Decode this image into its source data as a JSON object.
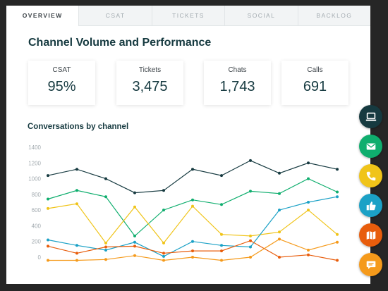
{
  "tabs": [
    {
      "label": "OVERVIEW",
      "active": true
    },
    {
      "label": "CSAT",
      "active": false
    },
    {
      "label": "TICKETS",
      "active": false
    },
    {
      "label": "SOCIAL",
      "active": false
    },
    {
      "label": "BACKLOG",
      "active": false
    }
  ],
  "page_title": "Channel Volume and Performance",
  "kpis": [
    {
      "label": "CSAT",
      "value": "95%"
    },
    {
      "label": "Tickets",
      "value": "3,475"
    },
    {
      "label": "Chats",
      "value": "1,743"
    },
    {
      "label": "Calls",
      "value": "691"
    }
  ],
  "chart_title": "Conversations by channel",
  "chart_data": {
    "type": "line",
    "title": "Conversations by channel",
    "xlabel": "",
    "ylabel": "",
    "ylim": [
      0,
      1400
    ],
    "yticks": [
      0,
      200,
      400,
      600,
      800,
      1000,
      1200,
      1400
    ],
    "x": [
      1,
      2,
      3,
      4,
      5,
      6,
      7,
      8,
      9,
      10,
      11
    ],
    "grid": false,
    "series": [
      {
        "color": "#163a40",
        "values": [
          1040,
          1120,
          1000,
          820,
          850,
          1120,
          1040,
          1230,
          1070,
          1200,
          1120
        ]
      },
      {
        "color": "#0fae6e",
        "values": [
          740,
          850,
          770,
          270,
          600,
          730,
          670,
          840,
          810,
          1000,
          830
        ]
      },
      {
        "color": "#f0c419",
        "values": [
          620,
          680,
          180,
          640,
          180,
          650,
          290,
          270,
          320,
          600,
          290
        ]
      },
      {
        "color": "#1ba1c6",
        "values": [
          220,
          150,
          90,
          190,
          10,
          200,
          150,
          130,
          600,
          700,
          770
        ]
      },
      {
        "color": "#e85d0c",
        "values": [
          140,
          50,
          130,
          140,
          50,
          80,
          80,
          210,
          0,
          30,
          -40
        ]
      },
      {
        "color": "#f59a1b",
        "values": [
          -40,
          -40,
          -30,
          20,
          -40,
          0,
          -40,
          0,
          230,
          90,
          190
        ]
      }
    ]
  },
  "side_buttons": [
    {
      "name": "computer-icon",
      "color": "#163a40"
    },
    {
      "name": "email-icon",
      "color": "#0fae6e"
    },
    {
      "name": "phone-icon",
      "color": "#f0c419"
    },
    {
      "name": "thumbs-up-icon",
      "color": "#1ba1c6"
    },
    {
      "name": "map-icon",
      "color": "#e85d0c"
    },
    {
      "name": "chat-icon",
      "color": "#f59a1b"
    }
  ]
}
